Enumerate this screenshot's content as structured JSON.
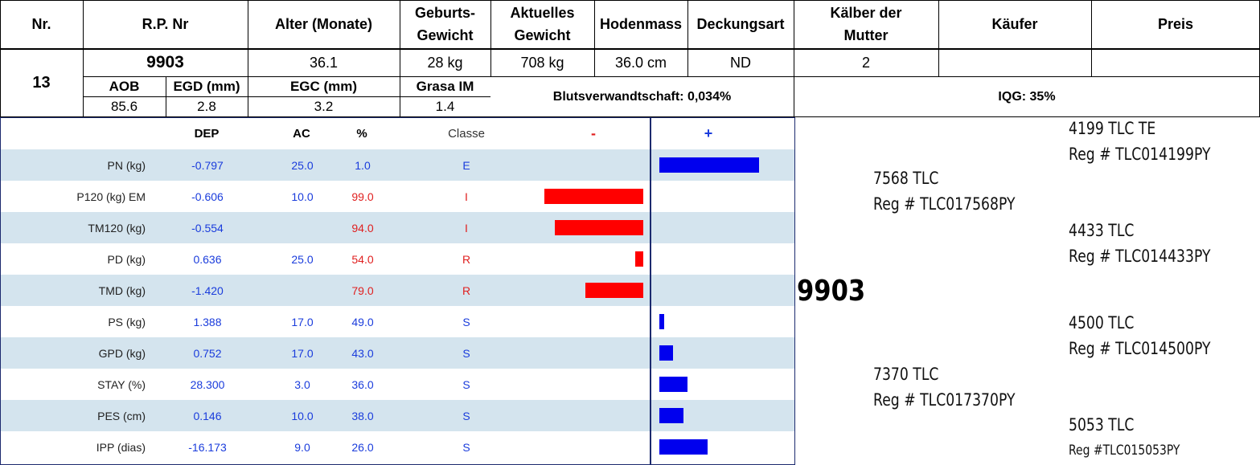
{
  "headers": {
    "nr": "Nr.",
    "rp_nr": "R.P. Nr",
    "alter": "Alter (Monate)",
    "geburt_1": "Geburts-",
    "geburt_2": "Gewicht",
    "aktuell_1": "Aktuelles",
    "aktuell_2": "Gewicht",
    "hodenmass": "Hodenmass",
    "deckungsart": "Deckungsart",
    "kaelber_1": "Kälber der",
    "kaelber_2": "Mutter",
    "kaeufer": "Käufer",
    "preis": "Preis"
  },
  "animal": {
    "nr": "13",
    "rp_nr": "9903",
    "alter": "36.1",
    "geburtsgewicht": "28 kg",
    "aktuelles_gewicht": "708 kg",
    "hodenmass": "36.0 cm",
    "deckungsart": "ND",
    "kaelber": "2",
    "kaeufer": "",
    "preis": ""
  },
  "sub_headers": {
    "aob": "AOB",
    "egd": "EGD (mm)",
    "egc": "EGC (mm)",
    "grasa": "Grasa IM"
  },
  "sub_values": {
    "aob": "85.6",
    "egd": "2.8",
    "egc": "3.2",
    "grasa": "1.4"
  },
  "blutsverwandtschaft": "Blutsverwandtschaft: 0,034%",
  "iqg": "IQG: 35%",
  "epd_table": {
    "columns": {
      "dep": "DEP",
      "ac": "AC",
      "pct": "%",
      "classe": "Classe",
      "minus": "-",
      "plus": "+"
    },
    "rows": [
      {
        "trait": "PN (kg)",
        "dep": "-0.797",
        "ac": "25.0",
        "pct": "1.0",
        "classe": "E",
        "bar": 1.0
      },
      {
        "trait": "P120 (kg) EM",
        "dep": "-0.606",
        "ac": "10.0",
        "pct": "99.0",
        "classe": "I",
        "bar": -0.99
      },
      {
        "trait": "TM120 (kg)",
        "dep": "-0.554",
        "ac": "",
        "pct": "94.0",
        "classe": "I",
        "bar": -0.89
      },
      {
        "trait": "PD (kg)",
        "dep": "0.636",
        "ac": "25.0",
        "pct": "54.0",
        "classe": "R",
        "bar": -0.08
      },
      {
        "trait": "TMD (kg)",
        "dep": "-1.420",
        "ac": "",
        "pct": "79.0",
        "classe": "R",
        "bar": -0.58
      },
      {
        "trait": "PS (kg)",
        "dep": "1.388",
        "ac": "17.0",
        "pct": "49.0",
        "classe": "S",
        "bar": 0.02
      },
      {
        "trait": "GPD (kg)",
        "dep": "0.752",
        "ac": "17.0",
        "pct": "43.0",
        "classe": "S",
        "bar": 0.14
      },
      {
        "trait": "STAY (%)",
        "dep": "28.300",
        "ac": "3.0",
        "pct": "36.0",
        "classe": "S",
        "bar": 0.28
      },
      {
        "trait": "PES (cm)",
        "dep": "0.146",
        "ac": "10.0",
        "pct": "38.0",
        "classe": "S",
        "bar": 0.24
      },
      {
        "trait": "IPP (dias)",
        "dep": "-16.173",
        "ac": "9.0",
        "pct": "26.0",
        "classe": "S",
        "bar": 0.48
      }
    ]
  },
  "pedigree": {
    "animal": "9903",
    "sire": {
      "name": "7568 TLC",
      "reg": "Reg # TLC017568PY"
    },
    "dam": {
      "name": "7370 TLC",
      "reg": "Reg # TLC017370PY"
    },
    "sire_sire": {
      "name": "4199 TLC TE",
      "reg": "Reg # TLC014199PY"
    },
    "sire_dam": {
      "name": "4433 TLC",
      "reg": "Reg # TLC014433PY"
    },
    "dam_sire": {
      "name": "4500 TLC",
      "reg": "Reg # TLC014500PY"
    },
    "dam_dam": {
      "name": "5053 TLC",
      "reg": "Reg #TLC015053PY"
    }
  },
  "colors": {
    "positive_bar": "#0000ee",
    "negative_bar": "#ff0000",
    "row_shade": "#d4e4ee",
    "value_blue": "#1a3cdc",
    "value_red": "#e02020"
  }
}
